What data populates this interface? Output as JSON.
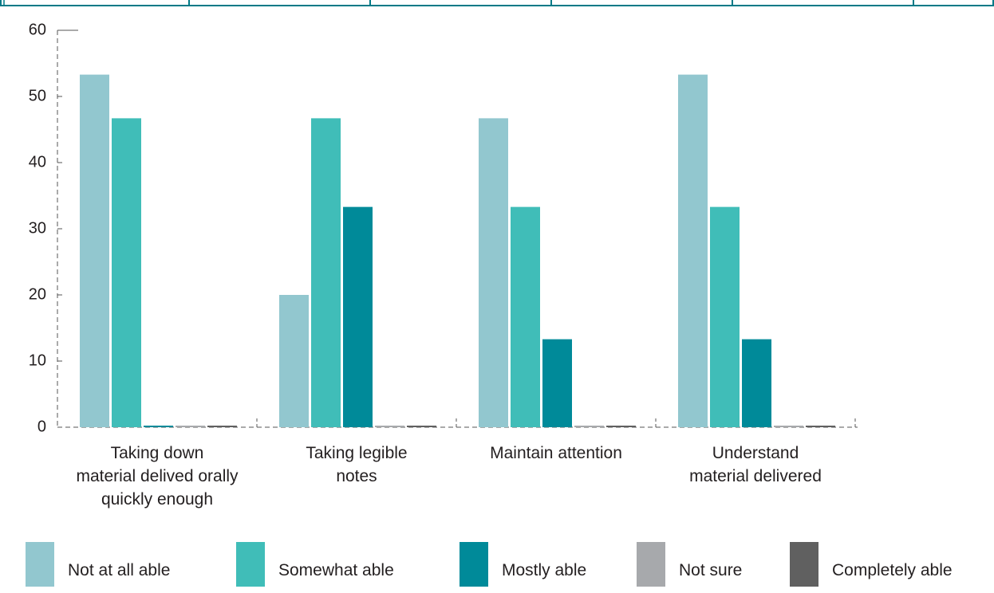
{
  "chart_data": {
    "type": "bar",
    "categories": [
      "Taking down\nmaterial delived orally\nquickly enough",
      "Taking legible\nnotes",
      "Maintain attention",
      "Understand\nmaterial delivered"
    ],
    "series": [
      {
        "name": "Not at all able",
        "color": "#92c7cf",
        "values": [
          53.3,
          20,
          46.7,
          53.3
        ]
      },
      {
        "name": "Somewhat able",
        "color": "#40bdb8",
        "values": [
          46.7,
          46.7,
          33.3,
          33.3
        ]
      },
      {
        "name": "Mostly able",
        "color": "#008a99",
        "values": [
          0,
          33.3,
          13.3,
          13.3
        ]
      },
      {
        "name": "Not sure",
        "color": "#a7a9ac",
        "values": [
          0,
          0,
          0,
          0
        ]
      },
      {
        "name": "Completely able",
        "color": "#606060",
        "values": [
          0,
          0,
          0,
          0
        ]
      }
    ],
    "ylim": [
      0,
      60
    ],
    "yticks": [
      0,
      10,
      20,
      30,
      40,
      50,
      60
    ],
    "legend": "bottom"
  }
}
